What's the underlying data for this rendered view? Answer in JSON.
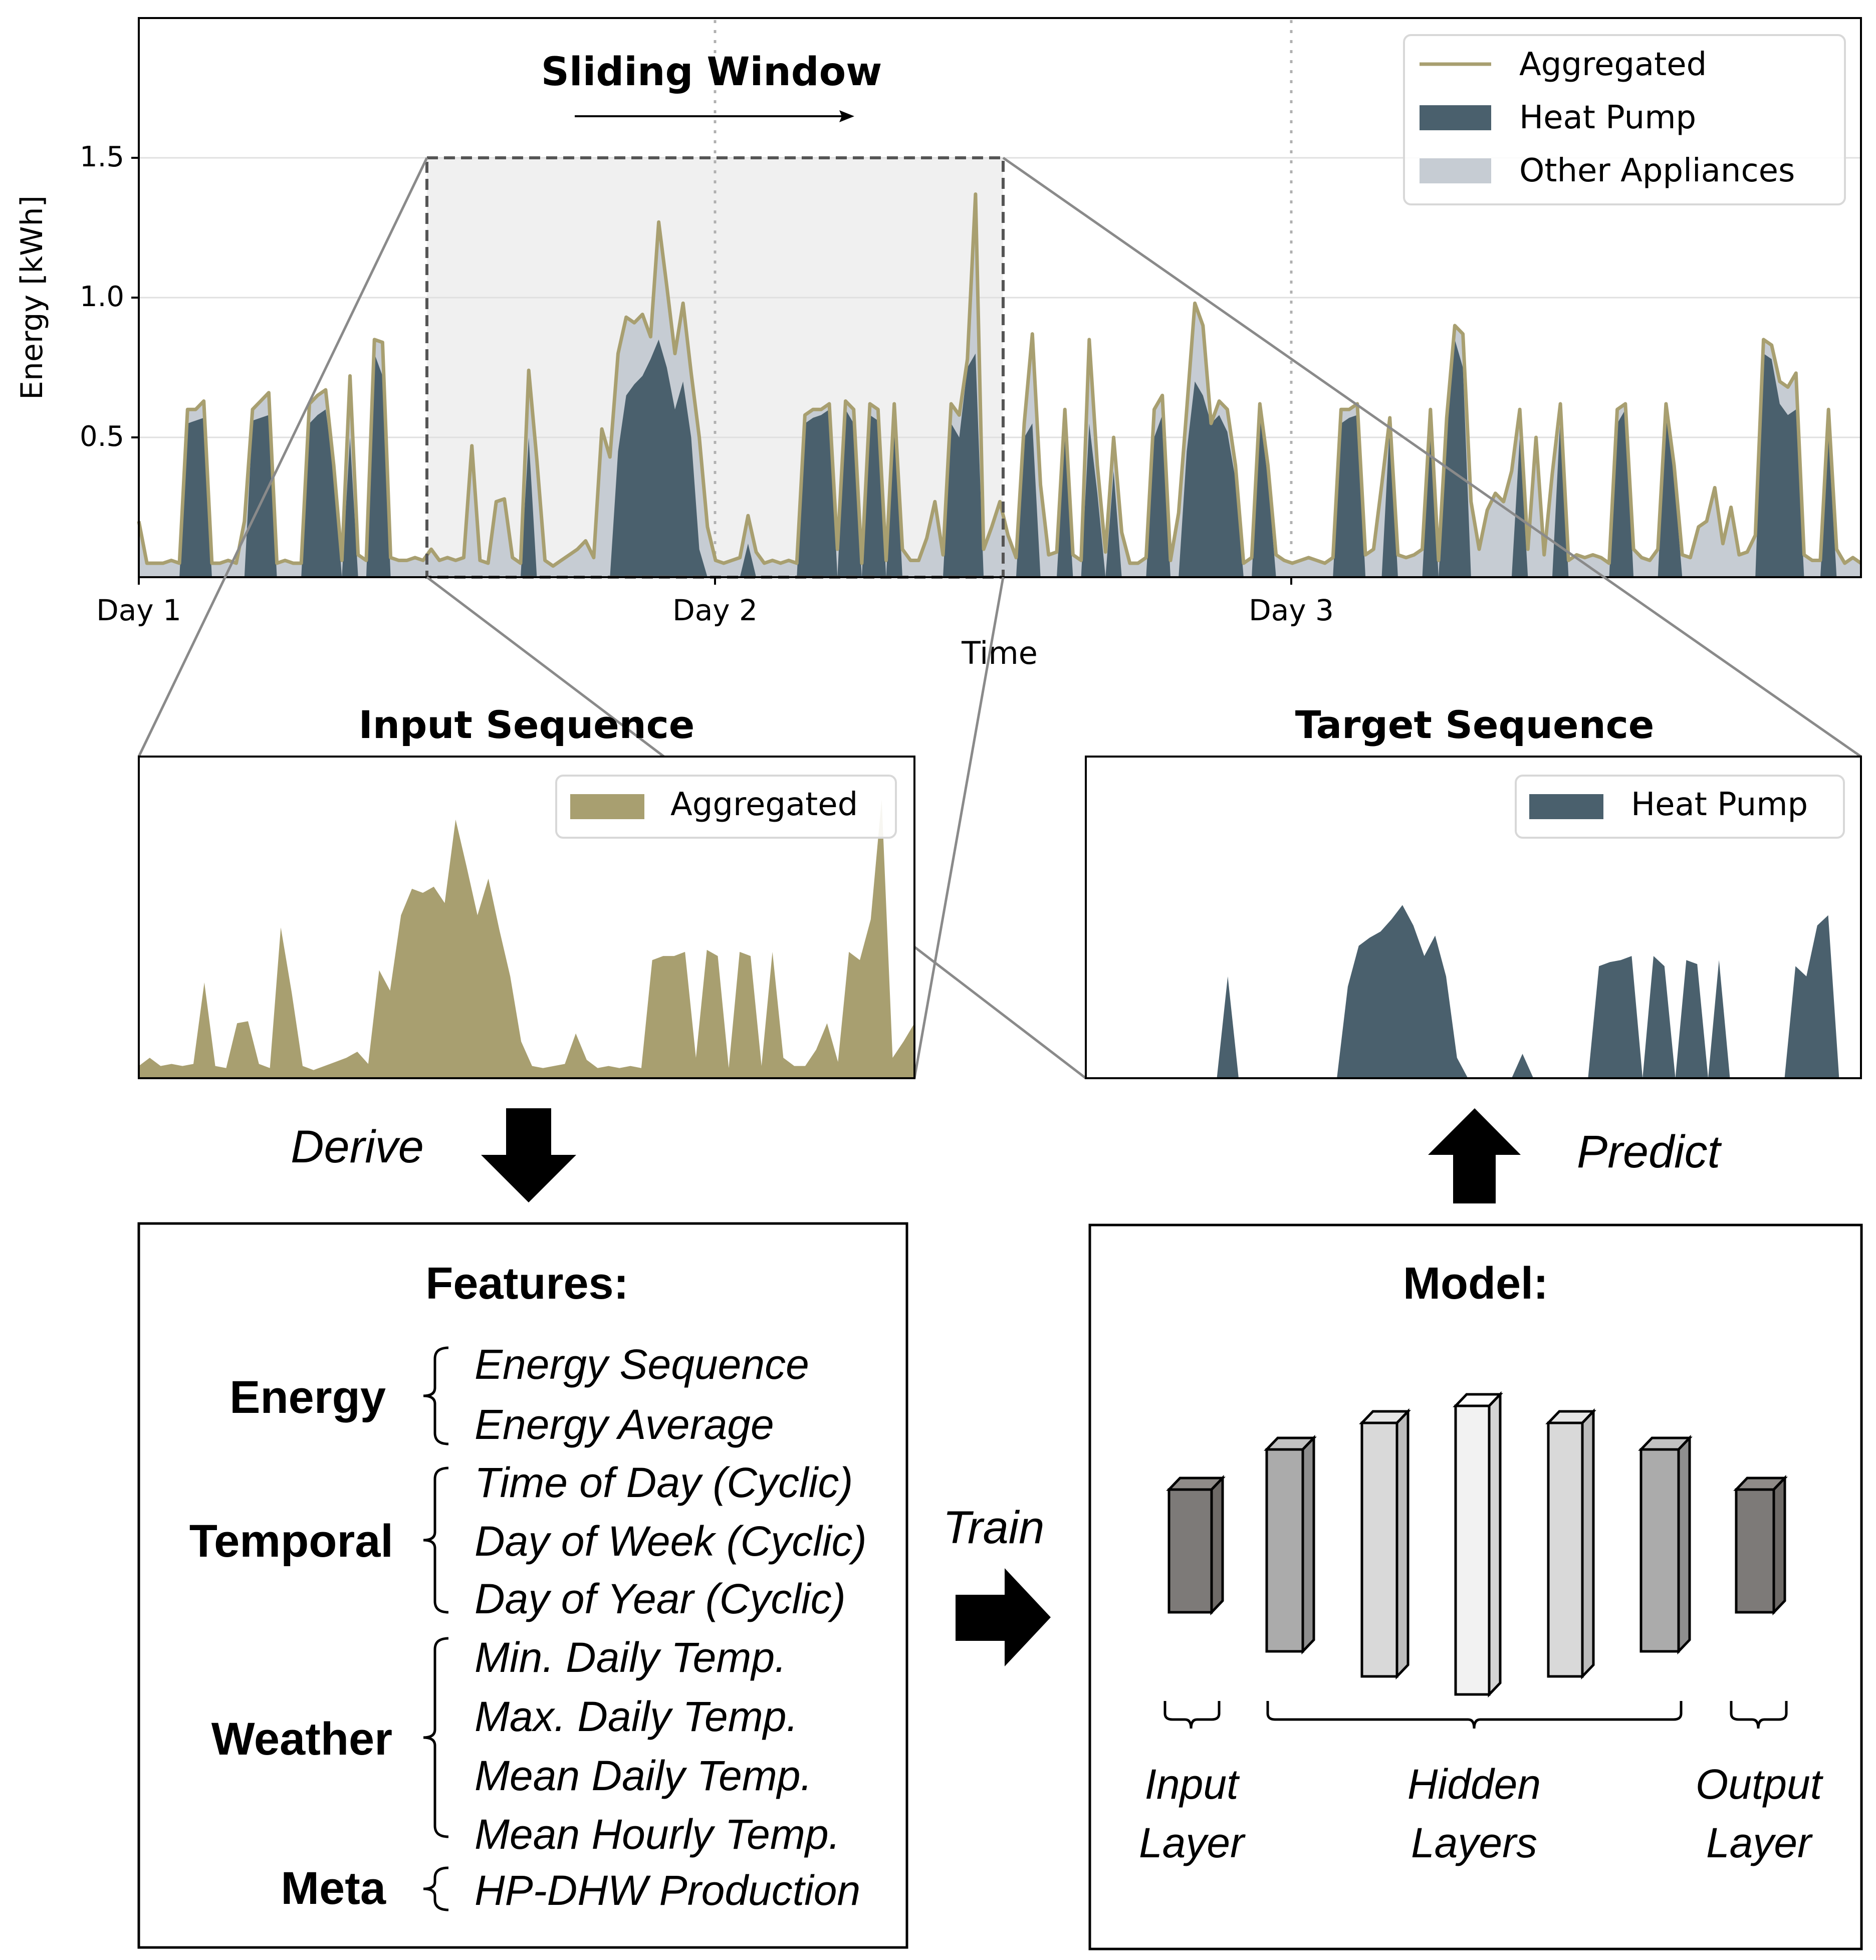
{
  "colors": {
    "aggregated": "#a89f70",
    "heat_pump": "#4a606d",
    "other_appliances": "#c6ccd3",
    "window_fill": "#f0f0f0"
  },
  "top_chart": {
    "ylabel": "Energy [kWh]",
    "xlabel": "Time",
    "title": "Sliding Window",
    "yticks": [
      "0.5",
      "1.0",
      "1.5"
    ],
    "xticks": [
      "Day 1",
      "Day 2",
      "Day 3"
    ],
    "legend": [
      "Aggregated",
      "Heat Pump",
      "Other Appliances"
    ]
  },
  "input_panel": {
    "title": "Input Sequence",
    "legend": "Aggregated"
  },
  "target_panel": {
    "title": "Target Sequence",
    "legend": "Heat Pump"
  },
  "arrows": {
    "derive": "Derive",
    "predict": "Predict",
    "train": "Train"
  },
  "features": {
    "title": "Features:",
    "groups": [
      {
        "name": "Energy",
        "items": [
          "Energy Sequence",
          "Energy Average"
        ]
      },
      {
        "name": "Temporal",
        "items": [
          "Time of Day (Cyclic)",
          "Day of Week (Cyclic)",
          "Day of Year (Cyclic)"
        ]
      },
      {
        "name": "Weather",
        "items": [
          "Min. Daily Temp.",
          "Max. Daily Temp.",
          "Mean Daily Temp.",
          "Mean Hourly Temp."
        ]
      },
      {
        "name": "Meta",
        "items": [
          "HP-DHW Production"
        ]
      }
    ]
  },
  "model": {
    "title": "Model:",
    "input_label": [
      "Input",
      "Layer"
    ],
    "hidden_label": [
      "Hidden",
      "Layers"
    ],
    "output_label": [
      "Output",
      "Layer"
    ]
  },
  "chart_data": {
    "type": "area",
    "xlabel": "Time",
    "ylabel": "Energy [kWh]",
    "x_ticks": [
      "Day 1",
      "Day 2",
      "Day 3"
    ],
    "ylim": [
      0,
      2.0
    ],
    "grid": true,
    "legend_position": "top-right",
    "series": [
      {
        "name": "Aggregated",
        "values": [
          0.2,
          0.05,
          0.05,
          0.05,
          0.06,
          0.05,
          0.6,
          0.6,
          0.63,
          0.05,
          0.05,
          0.06,
          0.05,
          0.2,
          0.6,
          0.63,
          0.66,
          0.05,
          0.06,
          0.05,
          0.05,
          0.62,
          0.65,
          0.67,
          0.4,
          0.06,
          0.72,
          0.08,
          0.06,
          0.85,
          0.84,
          0.07,
          0.06,
          0.06,
          0.07,
          0.06,
          0.1,
          0.06,
          0.07,
          0.06,
          0.07,
          0.47,
          0.06,
          0.05,
          0.27,
          0.28,
          0.07,
          0.05,
          0.74,
          0.42,
          0.06,
          0.04,
          0.06,
          0.08,
          0.1,
          0.13,
          0.07,
          0.53,
          0.43,
          0.8,
          0.93,
          0.91,
          0.94,
          0.86,
          1.27,
          1.04,
          0.8,
          0.98,
          0.73,
          0.5,
          0.18,
          0.06,
          0.05,
          0.06,
          0.07,
          0.22,
          0.09,
          0.05,
          0.06,
          0.05,
          0.06,
          0.05,
          0.58,
          0.6,
          0.6,
          0.62,
          0.1,
          0.63,
          0.6,
          0.05,
          0.62,
          0.6,
          0.06,
          0.62,
          0.1,
          0.06,
          0.06,
          0.14,
          0.27,
          0.08,
          0.62,
          0.58,
          0.78,
          1.37,
          0.1,
          0.18,
          0.27,
          0.15,
          0.07,
          0.55,
          0.87,
          0.33,
          0.08,
          0.09,
          0.6,
          0.08,
          0.06,
          0.85,
          0.4,
          0.09,
          0.5,
          0.16,
          0.05,
          0.05,
          0.07,
          0.6,
          0.65,
          0.06,
          0.23,
          0.6,
          0.98,
          0.9,
          0.55,
          0.63,
          0.6,
          0.4,
          0.05,
          0.07,
          0.62,
          0.4,
          0.08,
          0.06,
          0.05,
          0.06,
          0.07,
          0.06,
          0.05,
          0.07,
          0.6,
          0.6,
          0.62,
          0.08,
          0.1,
          0.33,
          0.57,
          0.08,
          0.07,
          0.08,
          0.1,
          0.6,
          0.06,
          0.57,
          0.9,
          0.87,
          0.27,
          0.1,
          0.24,
          0.3,
          0.27,
          0.38,
          0.6,
          0.1,
          0.5,
          0.08,
          0.37,
          0.62,
          0.06,
          0.08,
          0.07,
          0.08,
          0.07,
          0.05,
          0.6,
          0.62,
          0.1,
          0.07,
          0.06,
          0.1,
          0.62,
          0.4,
          0.08,
          0.07,
          0.18,
          0.2,
          0.32,
          0.12,
          0.25,
          0.08,
          0.09,
          0.15,
          0.85,
          0.83,
          0.7,
          0.68,
          0.73,
          0.08,
          0.06,
          0.06,
          0.6,
          0.1,
          0.05,
          0.07,
          0.05
        ]
      },
      {
        "name": "Heat Pump",
        "values": [
          0.0,
          0.0,
          0.0,
          0.0,
          0.0,
          0.0,
          0.55,
          0.56,
          0.57,
          0.0,
          0.0,
          0.0,
          0.0,
          0.0,
          0.56,
          0.57,
          0.58,
          0.0,
          0.0,
          0.0,
          0.0,
          0.55,
          0.58,
          0.6,
          0.38,
          0.0,
          0.5,
          0.0,
          0.0,
          0.8,
          0.72,
          0.0,
          0.0,
          0.0,
          0.0,
          0.0,
          0.0,
          0.0,
          0.0,
          0.0,
          0.0,
          0.0,
          0.0,
          0.0,
          0.0,
          0.0,
          0.0,
          0.0,
          0.5,
          0.0,
          0.0,
          0.0,
          0.0,
          0.0,
          0.0,
          0.0,
          0.0,
          0.0,
          0.0,
          0.45,
          0.65,
          0.69,
          0.72,
          0.78,
          0.85,
          0.75,
          0.6,
          0.7,
          0.5,
          0.1,
          0.0,
          0.0,
          0.0,
          0.0,
          0.0,
          0.12,
          0.0,
          0.0,
          0.0,
          0.0,
          0.0,
          0.0,
          0.55,
          0.57,
          0.58,
          0.6,
          0.0,
          0.6,
          0.55,
          0.0,
          0.58,
          0.56,
          0.0,
          0.58,
          0.0,
          0.0,
          0.0,
          0.0,
          0.0,
          0.0,
          0.55,
          0.5,
          0.75,
          0.8,
          0.0,
          0.0,
          0.0,
          0.0,
          0.0,
          0.5,
          0.55,
          0.0,
          0.0,
          0.0,
          0.5,
          0.0,
          0.0,
          0.55,
          0.3,
          0.0,
          0.38,
          0.0,
          0.0,
          0.0,
          0.0,
          0.5,
          0.58,
          0.0,
          0.0,
          0.45,
          0.7,
          0.65,
          0.55,
          0.58,
          0.52,
          0.35,
          0.0,
          0.0,
          0.58,
          0.35,
          0.0,
          0.0,
          0.0,
          0.0,
          0.0,
          0.0,
          0.0,
          0.0,
          0.55,
          0.57,
          0.58,
          0.0,
          0.0,
          0.0,
          0.55,
          0.0,
          0.0,
          0.0,
          0.0,
          0.55,
          0.0,
          0.52,
          0.85,
          0.75,
          0.0,
          0.0,
          0.0,
          0.0,
          0.0,
          0.0,
          0.5,
          0.0,
          0.0,
          0.0,
          0.0,
          0.58,
          0.0,
          0.0,
          0.0,
          0.0,
          0.0,
          0.0,
          0.55,
          0.6,
          0.0,
          0.0,
          0.0,
          0.0,
          0.6,
          0.35,
          0.0,
          0.0,
          0.0,
          0.0,
          0.0,
          0.0,
          0.0,
          0.0,
          0.0,
          0.0,
          0.8,
          0.78,
          0.62,
          0.58,
          0.6,
          0.0,
          0.0,
          0.0,
          0.5,
          0.0,
          0.0,
          0.0,
          0.0
        ]
      }
    ]
  }
}
